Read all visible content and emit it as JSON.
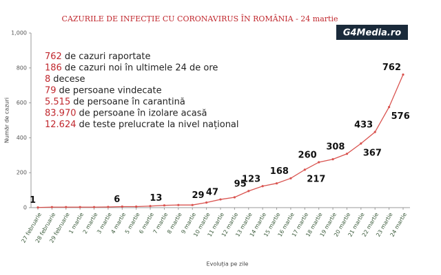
{
  "chart_data": {
    "type": "line",
    "title": "CAZURILE DE INFECȚIE CU CORONAVIRUS ÎN ROMÂNIA - 24 martie",
    "logo": "G4Media.ro",
    "x_label": "Evoluția pe zile",
    "y_label": "Număr de cazuri",
    "categories": [
      "27 februarie",
      "28 februarie",
      "29 februarie",
      "1 martie",
      "2 martie",
      "3 martie",
      "4 martie",
      "5 martie",
      "6 martie",
      "7 martie",
      "8 martie",
      "9 martie",
      "10 martie",
      "11 martie",
      "12 martie",
      "13 martie",
      "14 martie",
      "15 martie",
      "16 martie",
      "17 martie",
      "18 martie",
      "19 martie",
      "20 martie",
      "21 martie",
      "22 martie",
      "23 martie",
      "24 martie"
    ],
    "series": [
      {
        "name": "Cazuri",
        "color": "#d9534f",
        "values": [
          1,
          3,
          3,
          3,
          3,
          4,
          6,
          6,
          9,
          13,
          15,
          15,
          29,
          47,
          59,
          95,
          123,
          139,
          168,
          217,
          260,
          277,
          308,
          367,
          433,
          576,
          762
        ],
        "value_labels": [
          "1",
          null,
          null,
          null,
          null,
          null,
          "6",
          null,
          null,
          "13",
          null,
          null,
          "29",
          "47",
          null,
          "95",
          "123",
          null,
          "168",
          "217",
          "260",
          null,
          "308",
          "367",
          "433",
          "576",
          "762"
        ]
      }
    ],
    "ylim": [
      0,
      1000
    ],
    "yticks": [
      0,
      200,
      400,
      600,
      800,
      {
        "value": 1000,
        "label": "1,000"
      }
    ],
    "annotations": [
      {
        "number": "762",
        "text": "de cazuri raportate"
      },
      {
        "number": "186",
        "text": "de cazuri noi în ultimele 24 de ore"
      },
      {
        "number": "8",
        "text": "decese"
      },
      {
        "number": "79",
        "text": "de persoane vindecate"
      },
      {
        "number": "5.515",
        "text": "de persoane în carantină"
      },
      {
        "number": "83.970",
        "text": "de persoane în izolare acasă"
      },
      {
        "number": "12.624",
        "text": "de teste prelucrate la nivel național"
      }
    ]
  }
}
